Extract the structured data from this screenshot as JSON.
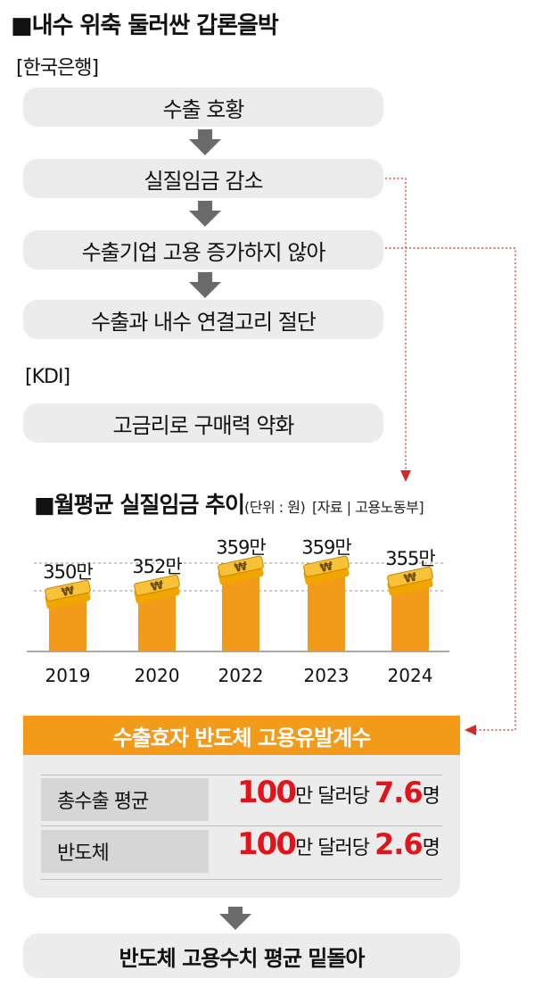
{
  "section1": {
    "title": "■내수 위축 둘러싼 갑론을박",
    "bok_tag": "[한국은행]",
    "bok_steps": [
      "수출 호황",
      "실질임금 감소",
      "수출기업 고용 증가하지 않아",
      "수출과 내수 연결고리 절단"
    ],
    "kdi_tag": "[KDI]",
    "kdi_step": "고금리로 구매력 약화"
  },
  "chart_data": {
    "type": "bar",
    "title": "■월평균 실질임금 추이",
    "unit_note": "(단위 : 원)",
    "source": "[자료 | 고용노동부]",
    "categories": [
      "2019",
      "2020",
      "2022",
      "2023",
      "2024"
    ],
    "values": [
      3500000,
      3520000,
      3590000,
      3590000,
      3550000
    ],
    "value_labels": [
      "350만",
      "352만",
      "359만",
      "359만",
      "355만"
    ],
    "colors": {
      "bar": "#f39a1b",
      "coin": "#f7c23a"
    }
  },
  "section3": {
    "banner": "수출효자 반도체 고용유발계수",
    "rows": [
      {
        "label": "총수출 평균",
        "big": "100",
        "mid": "만 달러당 ",
        "num": "7.6",
        "end": "명"
      },
      {
        "label": "반도체",
        "big": "100",
        "mid": "만 달러당 ",
        "num": "2.6",
        "end": "명"
      }
    ],
    "conclusion": "반도체 고용수치 평균 밑돌아"
  }
}
